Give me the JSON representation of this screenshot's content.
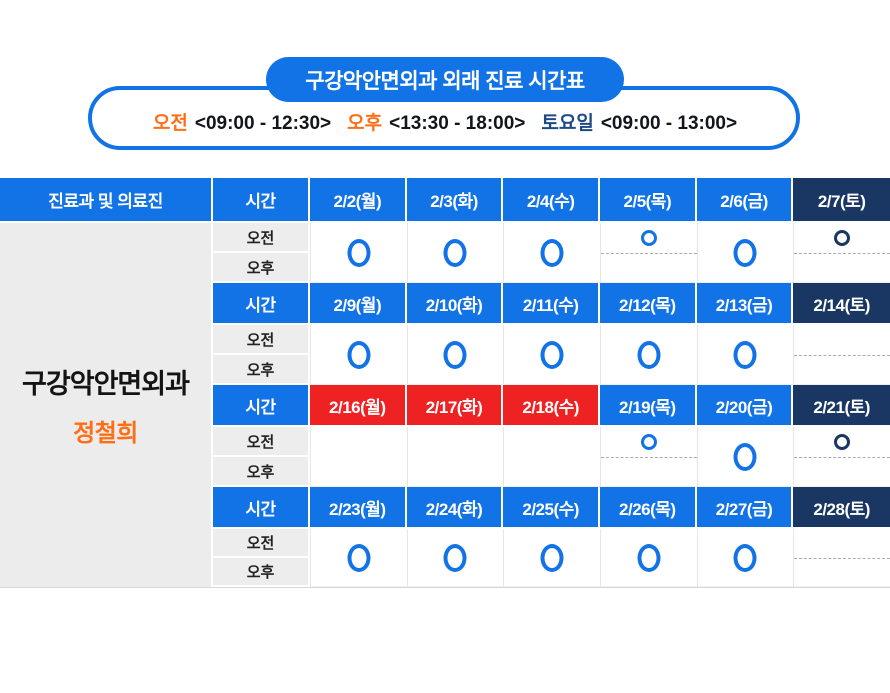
{
  "banner": {
    "title": "구강악안면외과 외래 진료 시간표",
    "hours": [
      {
        "label": "오전",
        "time": "<09:00 - 12:30>"
      },
      {
        "label": "오후",
        "time": "<13:30 - 18:00>"
      },
      {
        "label": "토요일",
        "time": "<09:00 - 13:00>"
      }
    ]
  },
  "colors": {
    "primary_blue": "#1273e6",
    "saturday_navy": "#1a3763",
    "holiday_red": "#ee2123",
    "accent_orange": "#ff6d15",
    "saturday_text_blue": "#1d4a85",
    "cell_gray": "#ededed"
  },
  "table": {
    "corner_header": "진료과 및 의료진",
    "time_header": "시간",
    "am_label": "오전",
    "pm_label": "오후",
    "department": "구강악안면외과",
    "doctor": "정철희",
    "weeks": [
      {
        "days": [
          {
            "label": "2/2(월)",
            "type": "weekday",
            "slot": "full"
          },
          {
            "label": "2/3(화)",
            "type": "weekday",
            "slot": "full"
          },
          {
            "label": "2/4(수)",
            "type": "weekday",
            "slot": "full"
          },
          {
            "label": "2/5(목)",
            "type": "weekday",
            "slot": "am"
          },
          {
            "label": "2/6(금)",
            "type": "weekday",
            "slot": "full"
          },
          {
            "label": "2/7(토)",
            "type": "saturday",
            "slot": "am"
          }
        ]
      },
      {
        "days": [
          {
            "label": "2/9(월)",
            "type": "weekday",
            "slot": "full"
          },
          {
            "label": "2/10(화)",
            "type": "weekday",
            "slot": "full"
          },
          {
            "label": "2/11(수)",
            "type": "weekday",
            "slot": "full"
          },
          {
            "label": "2/12(목)",
            "type": "weekday",
            "slot": "full"
          },
          {
            "label": "2/13(금)",
            "type": "weekday",
            "slot": "full"
          },
          {
            "label": "2/14(토)",
            "type": "saturday",
            "slot": "empty-dash"
          }
        ]
      },
      {
        "days": [
          {
            "label": "2/16(월)",
            "type": "holiday",
            "slot": "empty"
          },
          {
            "label": "2/17(화)",
            "type": "holiday",
            "slot": "empty"
          },
          {
            "label": "2/18(수)",
            "type": "holiday",
            "slot": "empty"
          },
          {
            "label": "2/19(목)",
            "type": "weekday",
            "slot": "am"
          },
          {
            "label": "2/20(금)",
            "type": "weekday",
            "slot": "full"
          },
          {
            "label": "2/21(토)",
            "type": "saturday",
            "slot": "am"
          }
        ]
      },
      {
        "days": [
          {
            "label": "2/23(월)",
            "type": "weekday",
            "slot": "full"
          },
          {
            "label": "2/24(화)",
            "type": "weekday",
            "slot": "full"
          },
          {
            "label": "2/25(수)",
            "type": "weekday",
            "slot": "full"
          },
          {
            "label": "2/26(목)",
            "type": "weekday",
            "slot": "full"
          },
          {
            "label": "2/27(금)",
            "type": "weekday",
            "slot": "full"
          },
          {
            "label": "2/28(토)",
            "type": "saturday",
            "slot": "empty-dash"
          }
        ]
      }
    ]
  }
}
